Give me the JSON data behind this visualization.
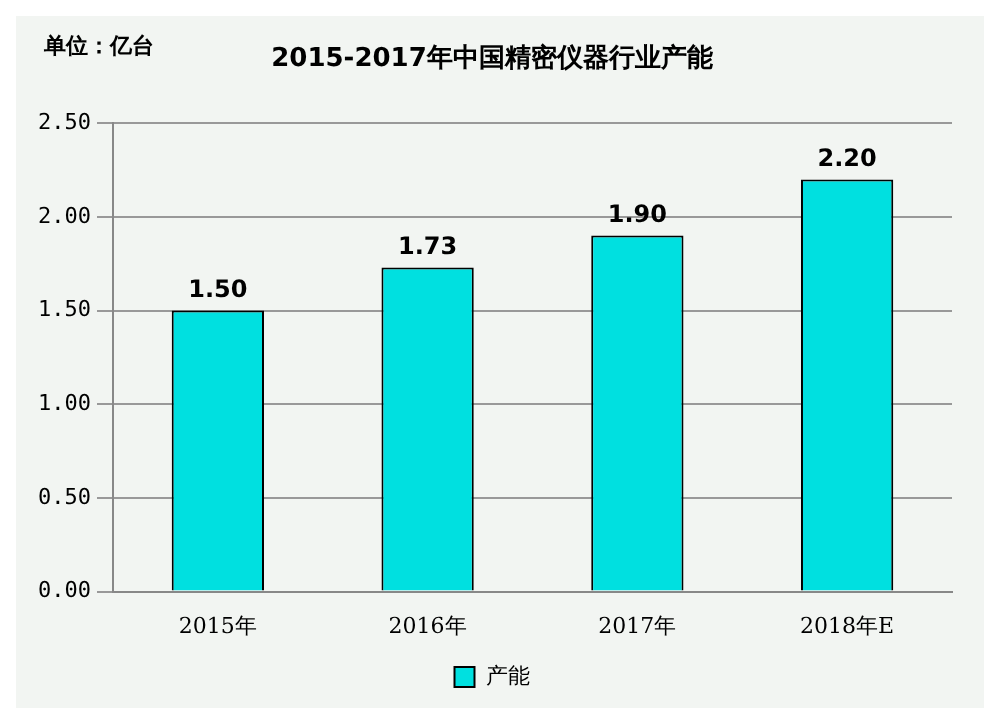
{
  "chart_data": {
    "type": "bar",
    "title": "2015-2017年中国精密仪器行业产能",
    "annotations": [
      "单位：亿台"
    ],
    "categories": [
      "2015年",
      "2016年",
      "2017年",
      "2018年E"
    ],
    "series": [
      {
        "name": "产能",
        "color": "#00e0e0",
        "values": [
          1.5,
          1.73,
          1.9,
          2.2
        ],
        "value_labels": [
          "1.50",
          "1.73",
          "1.90",
          "2.20"
        ]
      }
    ],
    "ylim": [
      0,
      2.5
    ],
    "yticks": [
      {
        "value": 0,
        "label": "0.00"
      },
      {
        "value": 0.5,
        "label": "0.50"
      },
      {
        "value": 1,
        "label": "1.00"
      },
      {
        "value": 1.5,
        "label": "1.50"
      },
      {
        "value": 2,
        "label": "2.00"
      },
      {
        "value": 2.5,
        "label": "2.50"
      }
    ],
    "grid": "y",
    "legend": "bottom"
  }
}
